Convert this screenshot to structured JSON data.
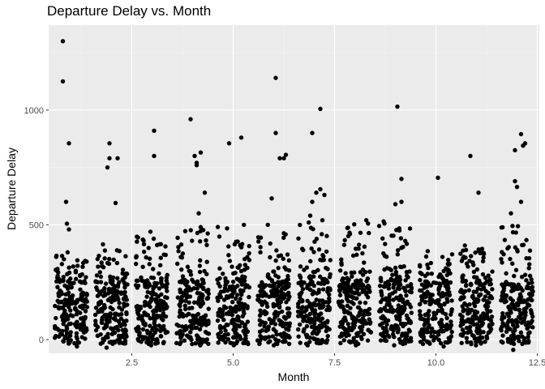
{
  "chart_data": {
    "type": "scatter",
    "title": "Departure Delay vs. Month",
    "xlabel": "Month",
    "ylabel": "Departure Delay",
    "xlim": [
      0.45,
      12.55
    ],
    "ylim": [
      -60,
      1370
    ],
    "xticks": [
      2.5,
      5.0,
      7.5,
      10.0,
      12.5
    ],
    "xtick_labels": [
      "2.5",
      "5.0",
      "7.5",
      "10.0",
      "12.5"
    ],
    "yticks": [
      0,
      500,
      1000
    ],
    "ytick_labels": [
      "0",
      "500",
      "1000"
    ],
    "grid": true,
    "background": "#ebebeb",
    "point_color": "#000000",
    "months": [
      {
        "month": 1,
        "min": -30,
        "max": 380,
        "outliers": [
          [
            0.8,
            1300
          ],
          [
            0.8,
            1125
          ],
          [
            0.95,
            855
          ],
          [
            0.88,
            600
          ],
          [
            0.9,
            505
          ],
          [
            0.95,
            480
          ]
        ]
      },
      {
        "month": 2,
        "min": -35,
        "max": 415,
        "outliers": [
          [
            1.95,
            855
          ],
          [
            1.95,
            790
          ],
          [
            2.15,
            790
          ],
          [
            1.9,
            750
          ],
          [
            2.1,
            595
          ]
        ]
      },
      {
        "month": 3,
        "min": -25,
        "max": 470,
        "outliers": [
          [
            3.05,
            910
          ],
          [
            3.05,
            800
          ]
        ]
      },
      {
        "month": 4,
        "min": -25,
        "max": 490,
        "outliers": [
          [
            3.95,
            960
          ],
          [
            4.2,
            815
          ],
          [
            4.05,
            800
          ],
          [
            4.1,
            770
          ],
          [
            4.1,
            760
          ],
          [
            4.3,
            640
          ],
          [
            4.15,
            550
          ]
        ]
      },
      {
        "month": 5,
        "min": -25,
        "max": 500,
        "outliers": [
          [
            5.2,
            880
          ],
          [
            4.9,
            855
          ]
        ]
      },
      {
        "month": 6,
        "min": -25,
        "max": 500,
        "outliers": [
          [
            6.05,
            1140
          ],
          [
            6.05,
            900
          ],
          [
            6.3,
            805
          ],
          [
            6.25,
            790
          ],
          [
            6.15,
            790
          ],
          [
            5.95,
            615
          ]
        ]
      },
      {
        "month": 7,
        "min": -25,
        "max": 510,
        "outliers": [
          [
            7.15,
            1005
          ],
          [
            6.95,
            900
          ],
          [
            7.15,
            655
          ],
          [
            7.05,
            640
          ],
          [
            7.25,
            630
          ],
          [
            6.95,
            600
          ],
          [
            6.9,
            540
          ],
          [
            7.2,
            520
          ]
        ]
      },
      {
        "month": 8,
        "min": -25,
        "max": 520,
        "outliers": []
      },
      {
        "month": 9,
        "min": -25,
        "max": 515,
        "outliers": [
          [
            9.05,
            1015
          ],
          [
            9.15,
            700
          ],
          [
            9.15,
            600
          ],
          [
            9.0,
            590
          ],
          [
            9.1,
            475
          ]
        ]
      },
      {
        "month": 10,
        "min": -30,
        "max": 385,
        "outliers": [
          [
            10.05,
            705
          ]
        ]
      },
      {
        "month": 11,
        "min": -25,
        "max": 410,
        "outliers": [
          [
            10.85,
            800
          ],
          [
            11.05,
            640
          ]
        ]
      },
      {
        "month": 12,
        "min": -45,
        "max": 495,
        "outliers": [
          [
            12.1,
            895
          ],
          [
            12.2,
            855
          ],
          [
            12.15,
            845
          ],
          [
            11.95,
            825
          ],
          [
            11.95,
            690
          ],
          [
            12.0,
            665
          ],
          [
            12.1,
            600
          ],
          [
            11.85,
            550
          ]
        ]
      }
    ]
  }
}
